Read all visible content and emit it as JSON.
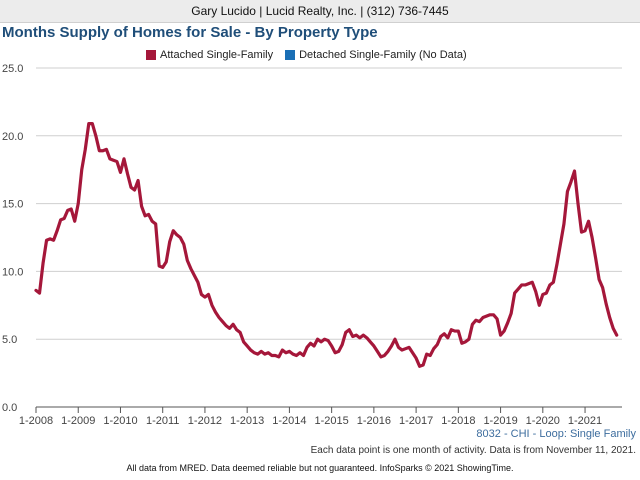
{
  "header": {
    "text": "Gary Lucido | Lucid Realty, Inc. | (312) 736-7445"
  },
  "title": "Months Supply of Homes for Sale - By Property Type",
  "legend": [
    {
      "label": "Attached Single-Family",
      "color": "#a5173a"
    },
    {
      "label": "Detached Single-Family (No Data)",
      "color": "#1a6fb5"
    }
  ],
  "subnote": "8032 - CHI - Loop: Single Family",
  "note": "Each data point is one month of activity. Data is from November 11, 2021.",
  "footer": "All data from MRED. Data deemed reliable but not guaranteed. InfoSparks © 2021 ShowingTime.",
  "chart_data": {
    "type": "line",
    "title": "Months Supply of Homes for Sale - By Property Type",
    "xlabel": "",
    "ylabel": "",
    "ylim": [
      0,
      25
    ],
    "yticks": [
      "0.0",
      "5.0",
      "10.0",
      "15.0",
      "20.0",
      "25.0"
    ],
    "xticks": [
      "1-2008",
      "1-2009",
      "1-2010",
      "1-2011",
      "1-2012",
      "1-2013",
      "1-2014",
      "1-2015",
      "1-2016",
      "1-2017",
      "1-2018",
      "1-2019",
      "1-2020",
      "1-2021"
    ],
    "grid": true,
    "legend_position": "top",
    "series": [
      {
        "name": "Attached Single-Family",
        "color": "#a5173a",
        "points": [
          [
            "2008-01",
            8.6
          ],
          [
            "2008-02",
            8.4
          ],
          [
            "2008-03",
            10.6
          ],
          [
            "2008-04",
            12.3
          ],
          [
            "2008-05",
            12.4
          ],
          [
            "2008-06",
            12.3
          ],
          [
            "2008-07",
            13.0
          ],
          [
            "2008-08",
            13.8
          ],
          [
            "2008-09",
            13.9
          ],
          [
            "2008-10",
            14.5
          ],
          [
            "2008-11",
            14.6
          ],
          [
            "2008-12",
            13.7
          ],
          [
            "2009-01",
            15.0
          ],
          [
            "2009-02",
            17.5
          ],
          [
            "2009-03",
            19.0
          ],
          [
            "2009-04",
            20.9
          ],
          [
            "2009-05",
            20.9
          ],
          [
            "2009-06",
            20.0
          ],
          [
            "2009-07",
            18.9
          ],
          [
            "2009-08",
            18.9
          ],
          [
            "2009-09",
            19.0
          ],
          [
            "2009-10",
            18.3
          ],
          [
            "2009-11",
            18.2
          ],
          [
            "2009-12",
            18.1
          ],
          [
            "2010-01",
            17.3
          ],
          [
            "2010-02",
            18.3
          ],
          [
            "2010-03",
            17.2
          ],
          [
            "2010-04",
            16.2
          ],
          [
            "2010-05",
            16.0
          ],
          [
            "2010-06",
            16.7
          ],
          [
            "2010-07",
            14.8
          ],
          [
            "2010-08",
            14.1
          ],
          [
            "2010-09",
            14.2
          ],
          [
            "2010-10",
            13.7
          ],
          [
            "2010-11",
            13.5
          ],
          [
            "2010-12",
            10.4
          ],
          [
            "2011-01",
            10.3
          ],
          [
            "2011-02",
            10.7
          ],
          [
            "2011-03",
            12.2
          ],
          [
            "2011-04",
            13.0
          ],
          [
            "2011-05",
            12.7
          ],
          [
            "2011-06",
            12.5
          ],
          [
            "2011-07",
            12.0
          ],
          [
            "2011-08",
            10.8
          ],
          [
            "2011-09",
            10.2
          ],
          [
            "2011-10",
            9.7
          ],
          [
            "2011-11",
            9.2
          ],
          [
            "2011-12",
            8.3
          ],
          [
            "2012-01",
            8.1
          ],
          [
            "2012-02",
            8.3
          ],
          [
            "2012-03",
            7.5
          ],
          [
            "2012-04",
            7.0
          ],
          [
            "2012-05",
            6.6
          ],
          [
            "2012-06",
            6.3
          ],
          [
            "2012-07",
            6.0
          ],
          [
            "2012-08",
            5.8
          ],
          [
            "2012-09",
            6.1
          ],
          [
            "2012-10",
            5.7
          ],
          [
            "2012-11",
            5.5
          ],
          [
            "2012-12",
            4.8
          ],
          [
            "2013-01",
            4.5
          ],
          [
            "2013-02",
            4.2
          ],
          [
            "2013-03",
            4.0
          ],
          [
            "2013-04",
            3.9
          ],
          [
            "2013-05",
            4.1
          ],
          [
            "2013-06",
            3.9
          ],
          [
            "2013-07",
            4.0
          ],
          [
            "2013-08",
            3.8
          ],
          [
            "2013-09",
            3.8
          ],
          [
            "2013-10",
            3.7
          ],
          [
            "2013-11",
            4.2
          ],
          [
            "2013-12",
            4.0
          ],
          [
            "2014-01",
            4.1
          ],
          [
            "2014-02",
            3.9
          ],
          [
            "2014-03",
            3.8
          ],
          [
            "2014-04",
            4.0
          ],
          [
            "2014-05",
            3.8
          ],
          [
            "2014-06",
            4.4
          ],
          [
            "2014-07",
            4.7
          ],
          [
            "2014-08",
            4.5
          ],
          [
            "2014-09",
            5.0
          ],
          [
            "2014-10",
            4.8
          ],
          [
            "2014-11",
            5.0
          ],
          [
            "2014-12",
            4.9
          ],
          [
            "2015-01",
            4.5
          ],
          [
            "2015-02",
            4.0
          ],
          [
            "2015-03",
            4.1
          ],
          [
            "2015-04",
            4.6
          ],
          [
            "2015-05",
            5.5
          ],
          [
            "2015-06",
            5.7
          ],
          [
            "2015-07",
            5.2
          ],
          [
            "2015-08",
            5.3
          ],
          [
            "2015-09",
            5.1
          ],
          [
            "2015-10",
            5.3
          ],
          [
            "2015-11",
            5.1
          ],
          [
            "2015-12",
            4.8
          ],
          [
            "2016-01",
            4.5
          ],
          [
            "2016-02",
            4.1
          ],
          [
            "2016-03",
            3.7
          ],
          [
            "2016-04",
            3.8
          ],
          [
            "2016-05",
            4.1
          ],
          [
            "2016-06",
            4.5
          ],
          [
            "2016-07",
            5.0
          ],
          [
            "2016-08",
            4.4
          ],
          [
            "2016-09",
            4.2
          ],
          [
            "2016-10",
            4.3
          ],
          [
            "2016-11",
            4.4
          ],
          [
            "2016-12",
            4.0
          ],
          [
            "2017-01",
            3.6
          ],
          [
            "2017-02",
            3.0
          ],
          [
            "2017-03",
            3.1
          ],
          [
            "2017-04",
            3.9
          ],
          [
            "2017-05",
            3.8
          ],
          [
            "2017-06",
            4.3
          ],
          [
            "2017-07",
            4.6
          ],
          [
            "2017-08",
            5.2
          ],
          [
            "2017-09",
            5.4
          ],
          [
            "2017-10",
            5.1
          ],
          [
            "2017-11",
            5.7
          ],
          [
            "2017-12",
            5.6
          ],
          [
            "2018-01",
            5.6
          ],
          [
            "2018-02",
            4.7
          ],
          [
            "2018-03",
            4.8
          ],
          [
            "2018-04",
            5.0
          ],
          [
            "2018-05",
            6.1
          ],
          [
            "2018-06",
            6.4
          ],
          [
            "2018-07",
            6.3
          ],
          [
            "2018-08",
            6.6
          ],
          [
            "2018-09",
            6.7
          ],
          [
            "2018-10",
            6.8
          ],
          [
            "2018-11",
            6.8
          ],
          [
            "2018-12",
            6.5
          ],
          [
            "2019-01",
            5.3
          ],
          [
            "2019-02",
            5.6
          ],
          [
            "2019-03",
            6.2
          ],
          [
            "2019-04",
            6.9
          ],
          [
            "2019-05",
            8.4
          ],
          [
            "2019-06",
            8.7
          ],
          [
            "2019-07",
            9.0
          ],
          [
            "2019-08",
            9.0
          ],
          [
            "2019-09",
            9.1
          ],
          [
            "2019-10",
            9.2
          ],
          [
            "2019-11",
            8.5
          ],
          [
            "2019-12",
            7.5
          ],
          [
            "2020-01",
            8.3
          ],
          [
            "2020-02",
            8.4
          ],
          [
            "2020-03",
            9.0
          ],
          [
            "2020-04",
            9.2
          ],
          [
            "2020-05",
            10.5
          ],
          [
            "2020-06",
            12.0
          ],
          [
            "2020-07",
            13.5
          ],
          [
            "2020-08",
            15.9
          ],
          [
            "2020-09",
            16.6
          ],
          [
            "2020-10",
            17.4
          ],
          [
            "2020-11",
            15.0
          ],
          [
            "2020-12",
            12.9
          ],
          [
            "2021-01",
            13.0
          ],
          [
            "2021-02",
            13.7
          ],
          [
            "2021-03",
            12.5
          ],
          [
            "2021-04",
            11.0
          ],
          [
            "2021-05",
            9.4
          ],
          [
            "2021-06",
            8.8
          ],
          [
            "2021-07",
            7.6
          ],
          [
            "2021-08",
            6.6
          ],
          [
            "2021-09",
            5.8
          ],
          [
            "2021-10",
            5.3
          ]
        ]
      }
    ]
  }
}
